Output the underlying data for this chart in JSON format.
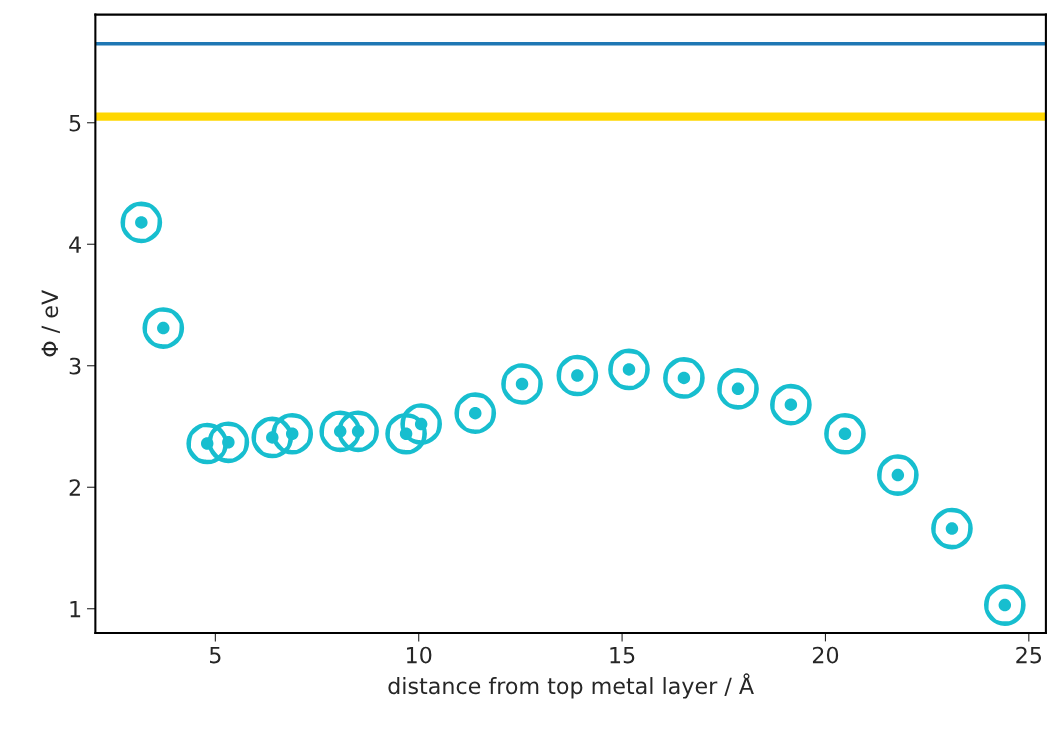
{
  "chart_data": {
    "type": "scatter",
    "xlabel": "distance from top metal layer / Å",
    "ylabel": "Φ / eV",
    "x": [
      3.18,
      3.72,
      4.8,
      5.32,
      6.4,
      6.89,
      8.07,
      8.51,
      9.69,
      10.06,
      11.39,
      12.54,
      13.9,
      15.17,
      16.52,
      17.85,
      19.15,
      20.48,
      21.78,
      23.11,
      24.41
    ],
    "series": [
      {
        "color": "#17becf",
        "values": [
          4.18,
          3.31,
          2.36,
          2.37,
          2.41,
          2.44,
          2.46,
          2.46,
          2.44,
          2.52,
          2.61,
          2.85,
          2.92,
          2.97,
          2.9,
          2.81,
          2.68,
          2.44,
          2.1,
          1.66,
          1.03
        ]
      }
    ],
    "marker": "circle",
    "ref_lines": [
      {
        "axis": "y",
        "value": 5.65,
        "color": "#1f77b4"
      },
      {
        "axis": "y",
        "value": 5.05,
        "color": "#ffd700"
      }
    ],
    "xlim": [
      2.05,
      25.42
    ],
    "ylim": [
      0.8,
      5.89
    ],
    "xticks": [
      5,
      10,
      15,
      20,
      25
    ],
    "yticks": [
      1,
      2,
      3,
      4,
      5
    ],
    "grid": false,
    "legend": false
  }
}
